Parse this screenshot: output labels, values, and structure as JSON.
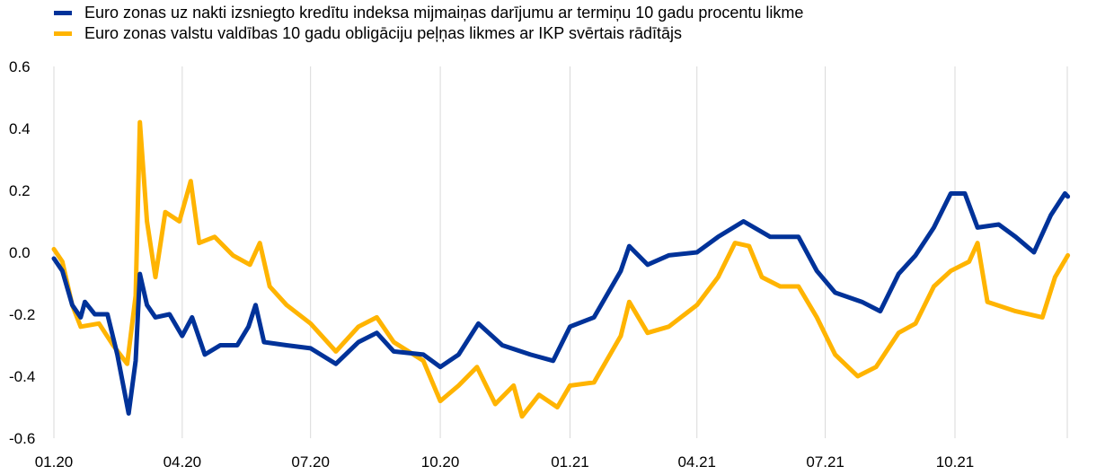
{
  "chart_data": {
    "type": "line",
    "title": "",
    "xlabel": "",
    "ylabel": "",
    "ylim": [
      -0.6,
      0.6
    ],
    "yticks": [
      "0.6",
      "0.4",
      "0.2",
      "0.0",
      "-0.2",
      "-0.4",
      "-0.6"
    ],
    "ytick_values": [
      0.6,
      0.4,
      0.2,
      0.0,
      -0.2,
      -0.4,
      -0.6
    ],
    "xticks": [
      "01.20",
      "04.20",
      "07.20",
      "10.20",
      "01.21",
      "04.21",
      "07.21",
      "10.21"
    ],
    "xtick_dates": [
      "2020-01-01",
      "2020-04-01",
      "2020-07-01",
      "2020-10-01",
      "2021-01-01",
      "2021-04-01",
      "2021-07-01",
      "2021-10-01"
    ],
    "xlim": [
      "2020-01-01",
      "2021-12-20"
    ],
    "grid": "vertical",
    "legend_position": "top-left",
    "series": [
      {
        "name": "Euro zonas uz nakti izsniegto kredītu indeksa mijmaiņas darījumu ar termiņu 10 gadu procentu likme",
        "color": "#003299",
        "points": [
          [
            "2020-01-01",
            -0.02
          ],
          [
            "2020-01-07",
            -0.06
          ],
          [
            "2020-01-14",
            -0.17
          ],
          [
            "2020-01-20",
            -0.21
          ],
          [
            "2020-01-23",
            -0.16
          ],
          [
            "2020-01-30",
            -0.2
          ],
          [
            "2020-02-08",
            -0.2
          ],
          [
            "2020-02-15",
            -0.33
          ],
          [
            "2020-02-23",
            -0.52
          ],
          [
            "2020-02-28",
            -0.35
          ],
          [
            "2020-03-02",
            -0.07
          ],
          [
            "2020-03-07",
            -0.17
          ],
          [
            "2020-03-13",
            -0.21
          ],
          [
            "2020-03-23",
            -0.2
          ],
          [
            "2020-04-01",
            -0.27
          ],
          [
            "2020-04-08",
            -0.21
          ],
          [
            "2020-04-17",
            -0.33
          ],
          [
            "2020-04-28",
            -0.3
          ],
          [
            "2020-05-10",
            -0.3
          ],
          [
            "2020-05-18",
            -0.24
          ],
          [
            "2020-05-23",
            -0.17
          ],
          [
            "2020-05-29",
            -0.29
          ],
          [
            "2020-06-14",
            -0.3
          ],
          [
            "2020-07-01",
            -0.31
          ],
          [
            "2020-07-19",
            -0.36
          ],
          [
            "2020-08-04",
            -0.29
          ],
          [
            "2020-08-17",
            -0.26
          ],
          [
            "2020-08-29",
            -0.32
          ],
          [
            "2020-09-19",
            -0.33
          ],
          [
            "2020-10-01",
            -0.37
          ],
          [
            "2020-10-14",
            -0.33
          ],
          [
            "2020-10-28",
            -0.23
          ],
          [
            "2020-11-14",
            -0.3
          ],
          [
            "2020-12-04",
            -0.33
          ],
          [
            "2020-12-20",
            -0.35
          ],
          [
            "2021-01-01",
            -0.24
          ],
          [
            "2021-01-18",
            -0.21
          ],
          [
            "2021-02-06",
            -0.06
          ],
          [
            "2021-02-12",
            0.02
          ],
          [
            "2021-02-25",
            -0.04
          ],
          [
            "2021-03-12",
            -0.01
          ],
          [
            "2021-04-01",
            0.0
          ],
          [
            "2021-04-16",
            0.05
          ],
          [
            "2021-05-04",
            0.1
          ],
          [
            "2021-05-23",
            0.05
          ],
          [
            "2021-06-12",
            0.05
          ],
          [
            "2021-06-25",
            -0.06
          ],
          [
            "2021-07-08",
            -0.13
          ],
          [
            "2021-07-27",
            -0.16
          ],
          [
            "2021-08-09",
            -0.19
          ],
          [
            "2021-08-22",
            -0.07
          ],
          [
            "2021-09-03",
            -0.01
          ],
          [
            "2021-09-16",
            0.08
          ],
          [
            "2021-09-28",
            0.19
          ],
          [
            "2021-10-08",
            0.19
          ],
          [
            "2021-10-17",
            0.08
          ],
          [
            "2021-11-01",
            0.09
          ],
          [
            "2021-11-13",
            0.05
          ],
          [
            "2021-11-26",
            0.0
          ],
          [
            "2021-12-08",
            0.12
          ],
          [
            "2021-12-18",
            0.19
          ],
          [
            "2021-12-20",
            0.18
          ]
        ]
      },
      {
        "name": "Euro zonas valstu valdības 10 gadu obligāciju peļņas likmes ar IKP svērtais rādītājs",
        "color": "#FFB400",
        "points": [
          [
            "2020-01-01",
            0.01
          ],
          [
            "2020-01-07",
            -0.03
          ],
          [
            "2020-01-14",
            -0.17
          ],
          [
            "2020-01-20",
            -0.24
          ],
          [
            "2020-02-02",
            -0.23
          ],
          [
            "2020-02-12",
            -0.3
          ],
          [
            "2020-02-22",
            -0.36
          ],
          [
            "2020-02-28",
            -0.14
          ],
          [
            "2020-03-02",
            0.42
          ],
          [
            "2020-03-07",
            0.1
          ],
          [
            "2020-03-13",
            -0.08
          ],
          [
            "2020-03-20",
            0.13
          ],
          [
            "2020-03-30",
            0.1
          ],
          [
            "2020-04-07",
            0.23
          ],
          [
            "2020-04-13",
            0.03
          ],
          [
            "2020-04-24",
            0.05
          ],
          [
            "2020-05-07",
            -0.01
          ],
          [
            "2020-05-19",
            -0.04
          ],
          [
            "2020-05-26",
            0.03
          ],
          [
            "2020-06-02",
            -0.11
          ],
          [
            "2020-06-14",
            -0.17
          ],
          [
            "2020-07-01",
            -0.23
          ],
          [
            "2020-07-19",
            -0.32
          ],
          [
            "2020-08-04",
            -0.24
          ],
          [
            "2020-08-17",
            -0.21
          ],
          [
            "2020-08-29",
            -0.29
          ],
          [
            "2020-09-19",
            -0.35
          ],
          [
            "2020-10-01",
            -0.48
          ],
          [
            "2020-10-14",
            -0.43
          ],
          [
            "2020-10-27",
            -0.37
          ],
          [
            "2020-11-09",
            -0.49
          ],
          [
            "2020-11-22",
            -0.43
          ],
          [
            "2020-11-28",
            -0.53
          ],
          [
            "2020-12-10",
            -0.46
          ],
          [
            "2020-12-23",
            -0.5
          ],
          [
            "2021-01-01",
            -0.43
          ],
          [
            "2021-01-18",
            -0.42
          ],
          [
            "2021-02-06",
            -0.27
          ],
          [
            "2021-02-12",
            -0.16
          ],
          [
            "2021-02-25",
            -0.26
          ],
          [
            "2021-03-12",
            -0.24
          ],
          [
            "2021-04-01",
            -0.17
          ],
          [
            "2021-04-16",
            -0.08
          ],
          [
            "2021-04-28",
            0.03
          ],
          [
            "2021-05-08",
            0.02
          ],
          [
            "2021-05-17",
            -0.08
          ],
          [
            "2021-05-30",
            -0.11
          ],
          [
            "2021-06-12",
            -0.11
          ],
          [
            "2021-06-25",
            -0.21
          ],
          [
            "2021-07-08",
            -0.33
          ],
          [
            "2021-07-24",
            -0.4
          ],
          [
            "2021-08-06",
            -0.37
          ],
          [
            "2021-08-22",
            -0.26
          ],
          [
            "2021-09-03",
            -0.23
          ],
          [
            "2021-09-16",
            -0.11
          ],
          [
            "2021-09-28",
            -0.06
          ],
          [
            "2021-10-11",
            -0.03
          ],
          [
            "2021-10-17",
            0.03
          ],
          [
            "2021-10-24",
            -0.16
          ],
          [
            "2021-11-13",
            -0.19
          ],
          [
            "2021-12-02",
            -0.21
          ],
          [
            "2021-12-11",
            -0.08
          ],
          [
            "2021-12-20",
            -0.01
          ]
        ]
      }
    ]
  }
}
